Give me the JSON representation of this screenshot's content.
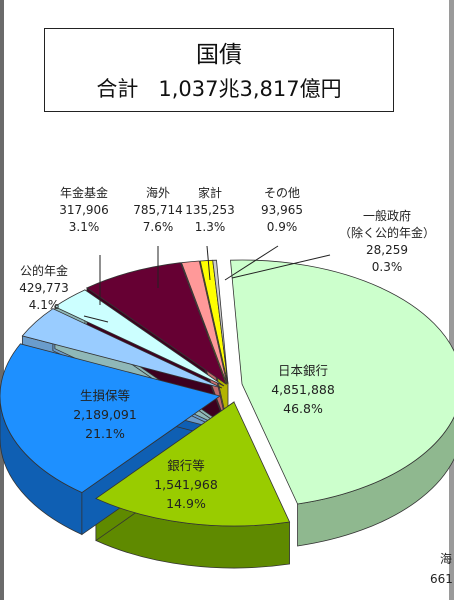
{
  "title": {
    "line1": "国債",
    "line2_prefix": "合計",
    "line2_amount": "1,037兆3,817億円"
  },
  "cropped_fragment": {
    "line1": "海",
    "line2": "661"
  },
  "chart_data": {
    "type": "pie",
    "slices": [
      {
        "label": "日本銀行",
        "value": "4,851,888",
        "percent": "46.8%",
        "color": "#ccffcc",
        "side": "#8fb88f",
        "label_inside": true
      },
      {
        "label": "銀行等",
        "value": "1,541,968",
        "percent": "14.9%",
        "color": "#99cc00",
        "side": "#5f8a00",
        "label_inside": true
      },
      {
        "label": "生損保等",
        "value": "2,189,091",
        "percent": "21.1%",
        "color": "#1e90ff",
        "side": "#0f5fb3",
        "label_inside": true
      },
      {
        "label": "公的年金",
        "value": "429,773",
        "percent": "4.1%",
        "color": "#99ccff",
        "side": "#6a9ccc",
        "label_inside": false
      },
      {
        "label": "年金基金",
        "value": "317,906",
        "percent": "3.1%",
        "color": "#ccffff",
        "side": "#8fb8b8",
        "label_inside": false
      },
      {
        "label": "海外",
        "value": "785,714",
        "percent": "7.6%",
        "color": "#660033",
        "side": "#3d001e",
        "label_inside": false
      },
      {
        "label": "家計",
        "value": "135,253",
        "percent": "1.3%",
        "color": "#ff9999",
        "side": "#c06a6a",
        "label_inside": false
      },
      {
        "label": "その他",
        "value": "93,965",
        "percent": "0.9%",
        "color": "#ffff00",
        "side": "#b3b300",
        "label_inside": false
      },
      {
        "label": "一般政府",
        "sublabel": "（除く公的年金）",
        "value": "28,259",
        "percent": "0.3%",
        "color": "#cccccc",
        "side": "#8a8a8a",
        "label_inside": false
      }
    ]
  }
}
